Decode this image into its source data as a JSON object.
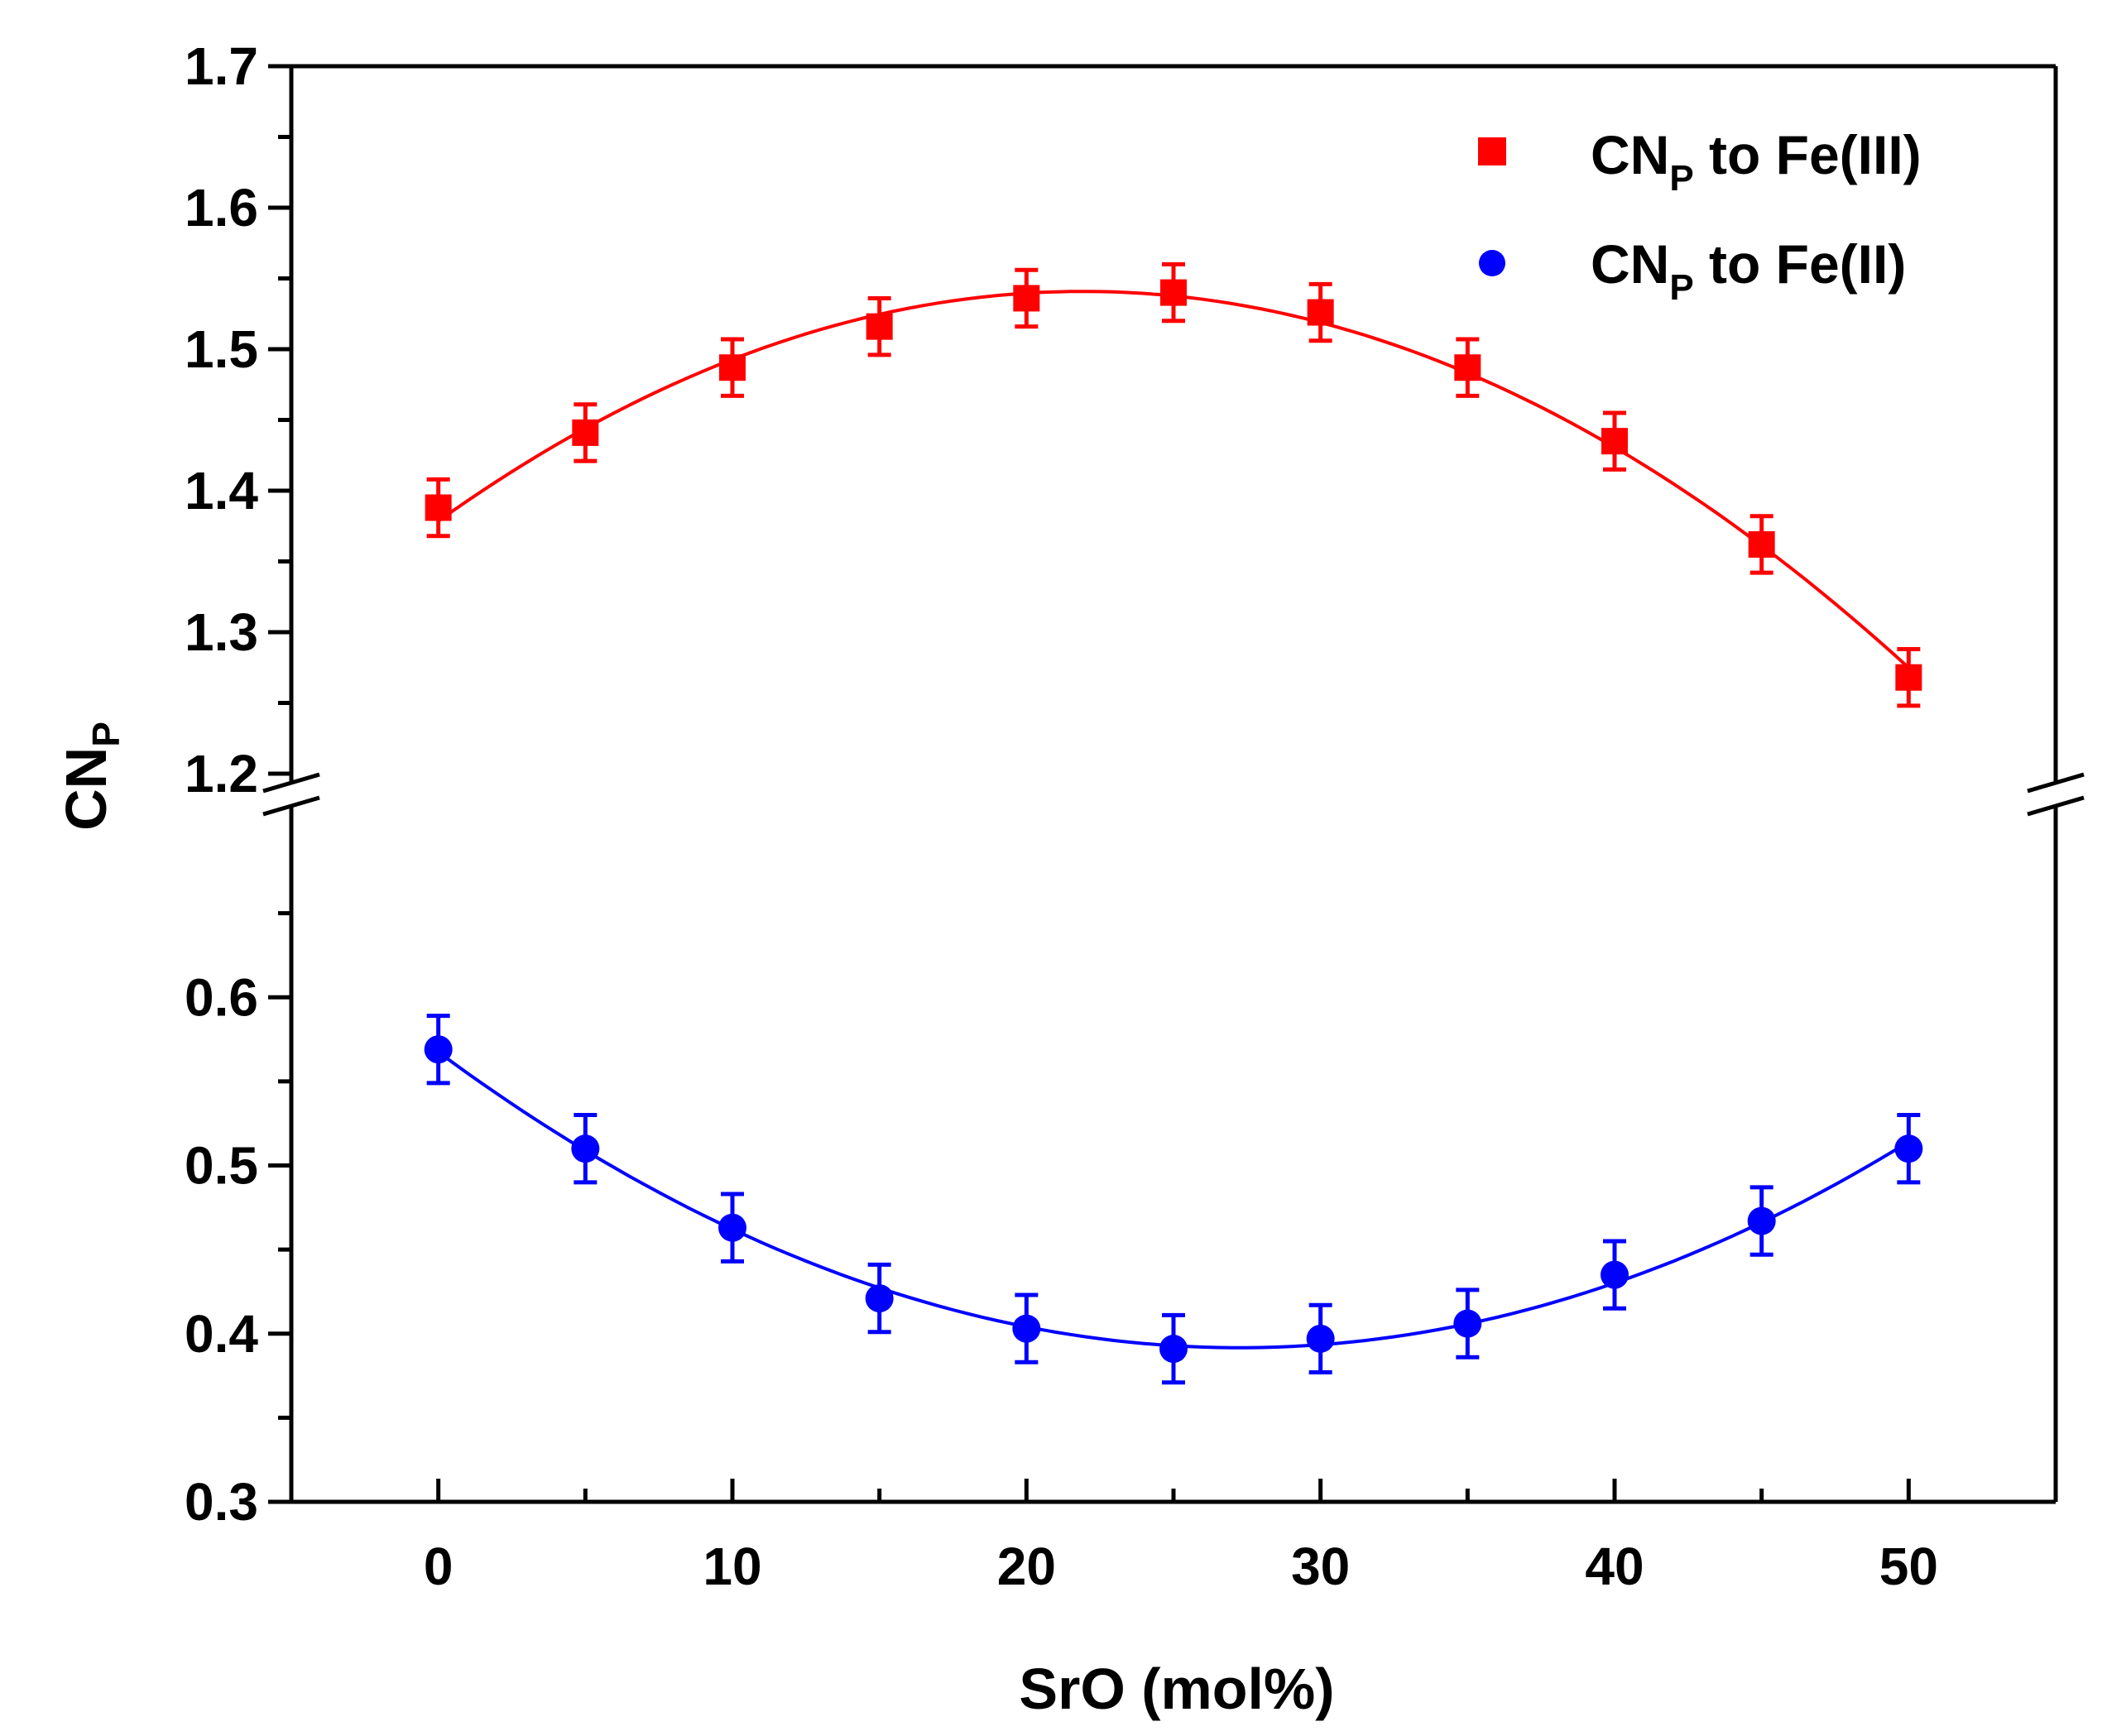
{
  "chart_data": {
    "type": "scatter",
    "title": "",
    "xlabel": "SrO (mol%)",
    "ylabel_main": "CN",
    "ylabel_sub": "P",
    "xlim": [
      -5,
      55
    ],
    "x_ticks": [
      0,
      10,
      20,
      30,
      40,
      50
    ],
    "x_tick_labels": [
      "0",
      "10",
      "20",
      "30",
      "40",
      "50"
    ],
    "y_break": true,
    "y_upper_range": [
      1.2,
      1.7
    ],
    "y_lower_range": [
      0.3,
      0.7
    ],
    "y_ticks_upper": [
      1.2,
      1.3,
      1.4,
      1.5,
      1.6,
      1.7
    ],
    "y_tick_labels_upper": [
      "1.2",
      "1.3",
      "1.4",
      "1.5",
      "1.6",
      "1.7"
    ],
    "y_ticks_lower": [
      0.3,
      0.4,
      0.5,
      0.6
    ],
    "y_tick_labels_lower": [
      "0.3",
      "0.4",
      "0.5",
      "0.6"
    ],
    "legend_position": "top-right",
    "grid": false,
    "series": [
      {
        "name_main": "CN",
        "name_sub": "P",
        "name_rest": " to Fe(III)",
        "marker": "square",
        "color": "#ff0000",
        "x": [
          0,
          5,
          10,
          15,
          20,
          25,
          30,
          35,
          40,
          45,
          50
        ],
        "y": [
          1.388,
          1.441,
          1.487,
          1.516,
          1.536,
          1.54,
          1.526,
          1.487,
          1.435,
          1.362,
          1.268
        ],
        "error": 0.02,
        "fit": "polynomial"
      },
      {
        "name_main": "CN",
        "name_sub": "P",
        "name_rest": " to Fe(II)",
        "marker": "circle",
        "color": "#0000ff",
        "x": [
          0,
          5,
          10,
          15,
          20,
          25,
          30,
          35,
          40,
          45,
          50
        ],
        "y": [
          0.569,
          0.51,
          0.463,
          0.421,
          0.403,
          0.391,
          0.397,
          0.406,
          0.435,
          0.467,
          0.51
        ],
        "error": 0.02,
        "fit": "polynomial"
      }
    ]
  }
}
